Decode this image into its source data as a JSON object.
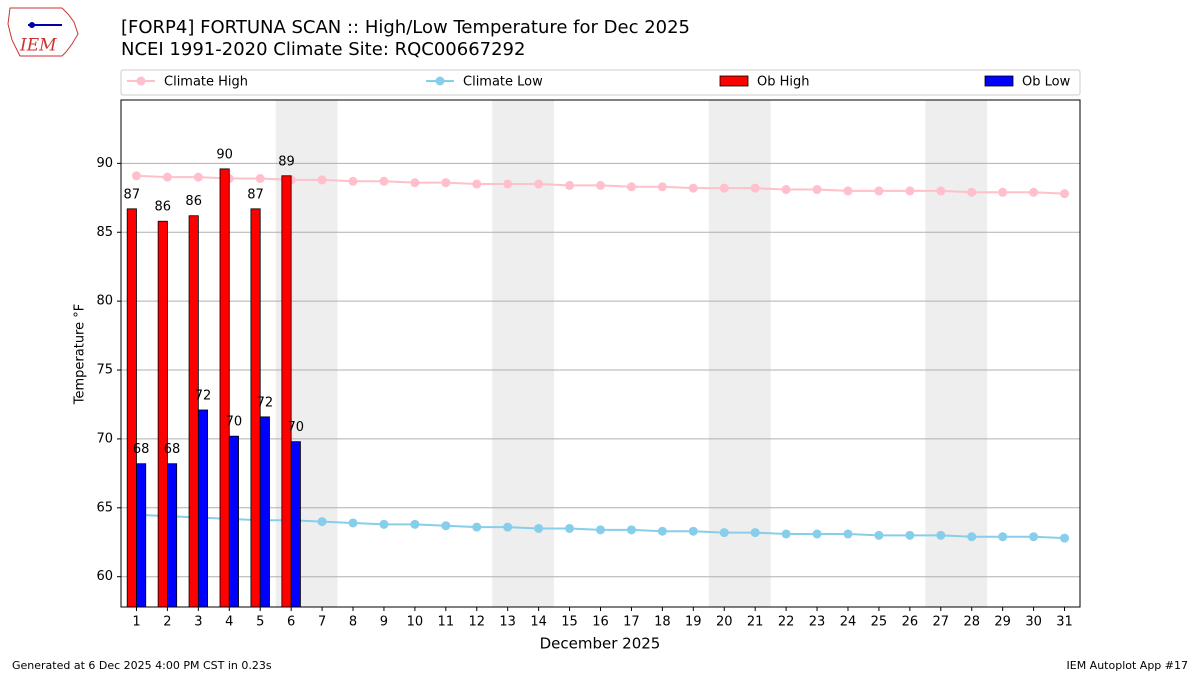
{
  "chart_data": {
    "type": "bar",
    "title": "[FORP4] FORTUNA SCAN :: High/Low Temperature for Dec 2025",
    "subtitle": "NCEI 1991-2020 Climate Site: RQC00667292",
    "xlabel": "December 2025",
    "ylabel": "Temperature °F",
    "x": [
      1,
      2,
      3,
      4,
      5,
      6,
      7,
      8,
      9,
      10,
      11,
      12,
      13,
      14,
      15,
      16,
      17,
      18,
      19,
      20,
      21,
      22,
      23,
      24,
      25,
      26,
      27,
      28,
      29,
      30,
      31
    ],
    "xlim": [
      0.5,
      31.5
    ],
    "xticks": [
      1,
      2,
      3,
      4,
      5,
      6,
      7,
      8,
      9,
      10,
      11,
      12,
      13,
      14,
      15,
      16,
      17,
      18,
      19,
      20,
      21,
      22,
      23,
      24,
      25,
      26,
      27,
      28,
      29,
      30,
      31
    ],
    "ylim": [
      57.8,
      94.6
    ],
    "yticks": [
      60,
      65,
      70,
      75,
      80,
      85,
      90
    ],
    "grid": true,
    "shaded_ranges": [
      [
        5.5,
        7.5
      ],
      [
        12.5,
        14.5
      ],
      [
        19.5,
        21.5
      ],
      [
        26.5,
        28.5
      ]
    ],
    "series": [
      {
        "name": "Climate High",
        "type": "line",
        "color": "#ffc0cb",
        "values": [
          89.1,
          89.0,
          89.0,
          88.9,
          88.9,
          88.8,
          88.8,
          88.7,
          88.7,
          88.6,
          88.6,
          88.5,
          88.5,
          88.5,
          88.4,
          88.4,
          88.3,
          88.3,
          88.2,
          88.2,
          88.2,
          88.1,
          88.1,
          88.0,
          88.0,
          88.0,
          88.0,
          87.9,
          87.9,
          87.9,
          87.8
        ]
      },
      {
        "name": "Climate Low",
        "type": "line",
        "color": "#87ceeb",
        "values": [
          64.5,
          64.4,
          64.3,
          64.2,
          64.1,
          64.1,
          64.0,
          63.9,
          63.8,
          63.8,
          63.7,
          63.6,
          63.6,
          63.5,
          63.5,
          63.4,
          63.4,
          63.3,
          63.3,
          63.2,
          63.2,
          63.1,
          63.1,
          63.1,
          63.0,
          63.0,
          63.0,
          62.9,
          62.9,
          62.9,
          62.8
        ]
      },
      {
        "name": "Ob High",
        "type": "bar",
        "color": "#ff0000",
        "values": [
          86.7,
          85.8,
          86.2,
          89.6,
          86.7,
          89.1,
          null,
          null,
          null,
          null,
          null,
          null,
          null,
          null,
          null,
          null,
          null,
          null,
          null,
          null,
          null,
          null,
          null,
          null,
          null,
          null,
          null,
          null,
          null,
          null,
          null
        ],
        "value_labels": [
          "87",
          "86",
          "86",
          "90",
          "87",
          "89",
          null,
          null,
          null,
          null,
          null,
          null,
          null,
          null,
          null,
          null,
          null,
          null,
          null,
          null,
          null,
          null,
          null,
          null,
          null,
          null,
          null,
          null,
          null,
          null,
          null
        ]
      },
      {
        "name": "Ob Low",
        "type": "bar",
        "color": "#0000ff",
        "values": [
          68.2,
          68.2,
          72.1,
          70.2,
          71.6,
          69.8,
          null,
          null,
          null,
          null,
          null,
          null,
          null,
          null,
          null,
          null,
          null,
          null,
          null,
          null,
          null,
          null,
          null,
          null,
          null,
          null,
          null,
          null,
          null,
          null,
          null
        ],
        "value_labels": [
          "68",
          "68",
          "72",
          "70",
          "72",
          "70",
          null,
          null,
          null,
          null,
          null,
          null,
          null,
          null,
          null,
          null,
          null,
          null,
          null,
          null,
          null,
          null,
          null,
          null,
          null,
          null,
          null,
          null,
          null,
          null,
          null
        ]
      }
    ]
  },
  "logo": "IEM",
  "footer_left": "Generated at 6 Dec 2025 4:00 PM CST in 0.23s",
  "footer_right": "IEM Autoplot App #17"
}
